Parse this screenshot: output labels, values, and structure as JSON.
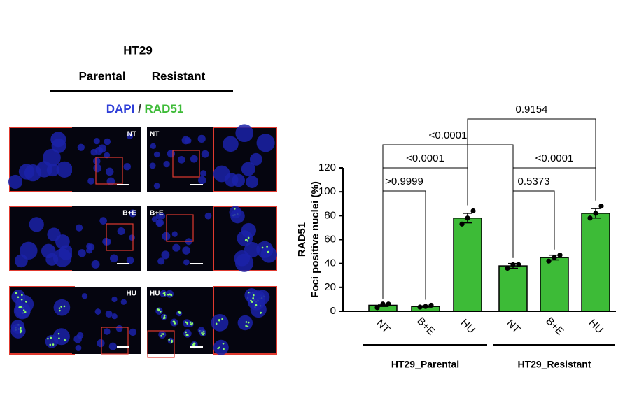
{
  "image_panel": {
    "title": "HT29",
    "columns": [
      "Parental",
      "Resistant"
    ],
    "stain_dapi": "DAPI",
    "stain_sep": "/",
    "stain_rad51": "RAD51",
    "rows": [
      {
        "parental": "NT",
        "resistant": "NT"
      },
      {
        "parental": "B+E",
        "resistant": "B+E"
      },
      {
        "parental": "HU",
        "resistant": "HU"
      }
    ]
  },
  "chart_data": {
    "type": "bar",
    "ylabel": [
      "RAD51",
      "Foci positive nuclei (%)"
    ],
    "categories": [
      "NT",
      "B+E",
      "HU",
      "NT",
      "B+E",
      "HU"
    ],
    "values": [
      5,
      4,
      78,
      38,
      45,
      82
    ],
    "errors": [
      1,
      0.5,
      4,
      2,
      2,
      4
    ],
    "points": [
      [
        3,
        6,
        6
      ],
      [
        3.5,
        4,
        5
      ],
      [
        73,
        78,
        84
      ],
      [
        36,
        39,
        39
      ],
      [
        42,
        45,
        47
      ],
      [
        78,
        82,
        88
      ]
    ],
    "color": "#3dbb37",
    "ylim": [
      0,
      120
    ],
    "yticks": [
      0,
      20,
      40,
      60,
      80,
      100,
      120
    ],
    "groups": [
      {
        "label": "HT29_Parental",
        "from": 0,
        "to": 2
      },
      {
        "label": "HT29_Resistant",
        "from": 3,
        "to": 5
      }
    ],
    "comparisons": [
      {
        "label": ">0.9999",
        "from": 0,
        "to": 1
      },
      {
        "label": "0.5373",
        "from": 3,
        "to": 4
      },
      {
        "label": "<0.0001",
        "from": 0,
        "to": 2
      },
      {
        "label": "<0.0001",
        "from": 3,
        "to": 5
      },
      {
        "label": "<0.0001",
        "from": 0,
        "to": 3
      },
      {
        "label": "0.9154",
        "from": 2,
        "to": 5
      }
    ]
  }
}
